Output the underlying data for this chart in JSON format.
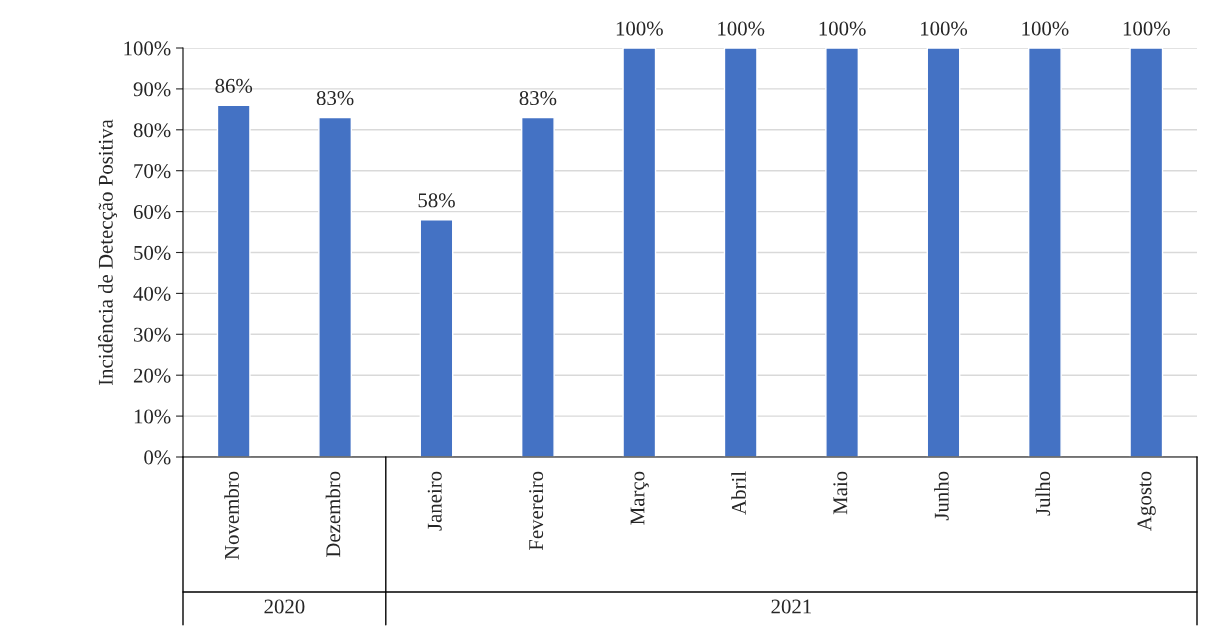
{
  "chart_data": {
    "type": "bar",
    "ylabel": "Incidência de Detecção Positiva",
    "categories": [
      "Novembro",
      "Dezembro",
      "Janeiro",
      "Fevereiro",
      "Março",
      "Abril",
      "Maio",
      "Junho",
      "Julho",
      "Agosto"
    ],
    "values": [
      86,
      83,
      58,
      83,
      100,
      100,
      100,
      100,
      100,
      100
    ],
    "value_labels": [
      "86%",
      "83%",
      "58%",
      "83%",
      "100%",
      "100%",
      "100%",
      "100%",
      "100%",
      "100%"
    ],
    "color": "#4472c4",
    "ylim": [
      0,
      100
    ],
    "yticks": [
      {
        "value": 0,
        "label": "0%"
      },
      {
        "value": 10,
        "label": "10%"
      },
      {
        "value": 20,
        "label": "20%"
      },
      {
        "value": 30,
        "label": "30%"
      },
      {
        "value": 40,
        "label": "40%"
      },
      {
        "value": 50,
        "label": "50%"
      },
      {
        "value": 60,
        "label": "60%"
      },
      {
        "value": 70,
        "label": "70%"
      },
      {
        "value": 80,
        "label": "80%"
      },
      {
        "value": 90,
        "label": "90%"
      },
      {
        "value": 100,
        "label": "100%"
      }
    ],
    "grid": "y",
    "annotations": [
      "2020",
      "2021"
    ]
  }
}
